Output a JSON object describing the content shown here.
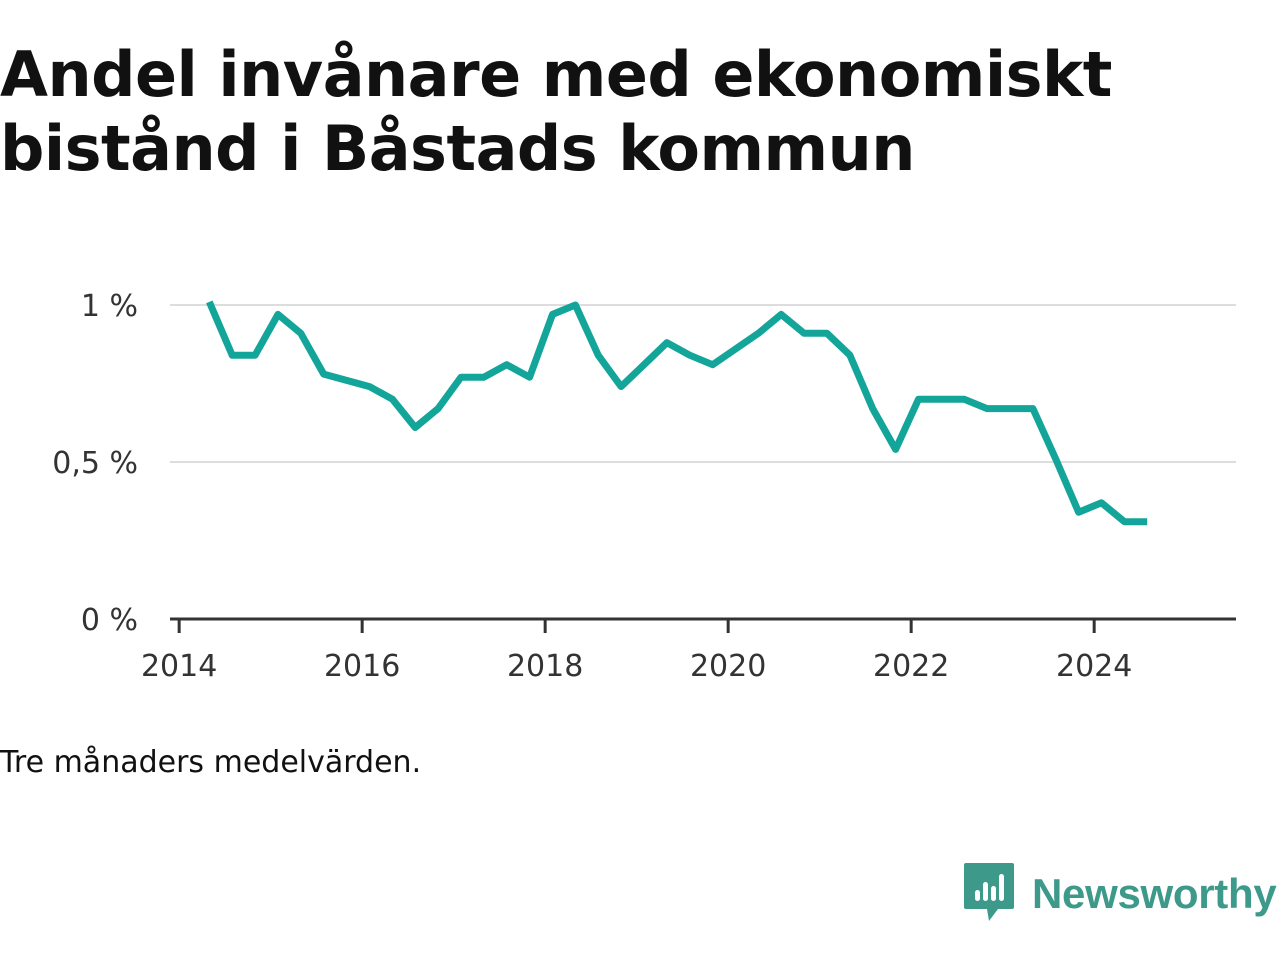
{
  "title": "Andel invånare med ekonomiskt bistånd i Båstads kommun",
  "footnote": "Tre månaders medelvärden.",
  "brand": {
    "name": "Newsworthy",
    "icon": "bar-chart-speech-bubble-icon",
    "color": "#3d9a8b"
  },
  "colors": {
    "line": "#13a59a",
    "grid": "#dddddd",
    "axis": "#333333"
  },
  "chart_data": {
    "type": "line",
    "title": "Andel invånare med ekonomiskt bistånd i Båstads kommun",
    "xlabel": "",
    "ylabel": "",
    "xlim": [
      2013.9,
      2025.55
    ],
    "ylim": [
      0,
      1
    ],
    "x_ticks": [
      2014,
      2016,
      2018,
      2020,
      2022,
      2024
    ],
    "x_tick_labels": [
      "2014",
      "2016",
      "2018",
      "2020",
      "2022",
      "2024"
    ],
    "y_ticks": [
      0,
      0.5,
      1
    ],
    "y_tick_labels": [
      "0 %",
      "0,5 %",
      "1 %"
    ],
    "grid": true,
    "legend": "none",
    "series": [
      {
        "x": [
          2014.33,
          2014.58,
          2014.83,
          2015.08,
          2015.33,
          2015.58,
          2015.83,
          2016.08,
          2016.33,
          2016.58,
          2016.83,
          2017.08,
          2017.33,
          2017.58,
          2017.83,
          2018.08,
          2018.33,
          2018.58,
          2018.83,
          2019.08,
          2019.33,
          2019.58,
          2019.83,
          2020.08,
          2020.33,
          2020.58,
          2020.83,
          2021.08,
          2021.33,
          2021.58,
          2021.83,
          2022.08,
          2022.33,
          2022.58,
          2022.83,
          2023.08,
          2023.33,
          2023.58,
          2023.83,
          2024.08,
          2024.33,
          2024.58
        ],
        "values": [
          1.01,
          0.84,
          0.84,
          0.97,
          0.91,
          0.78,
          0.76,
          0.74,
          0.7,
          0.61,
          0.67,
          0.77,
          0.77,
          0.81,
          0.77,
          0.97,
          1.0,
          0.84,
          0.74,
          0.81,
          0.88,
          0.84,
          0.81,
          0.86,
          0.91,
          0.97,
          0.91,
          0.91,
          0.84,
          0.67,
          0.54,
          0.7,
          0.7,
          0.7,
          0.67,
          0.67,
          0.67,
          0.51,
          0.34,
          0.37,
          0.31,
          0.31
        ]
      }
    ]
  }
}
